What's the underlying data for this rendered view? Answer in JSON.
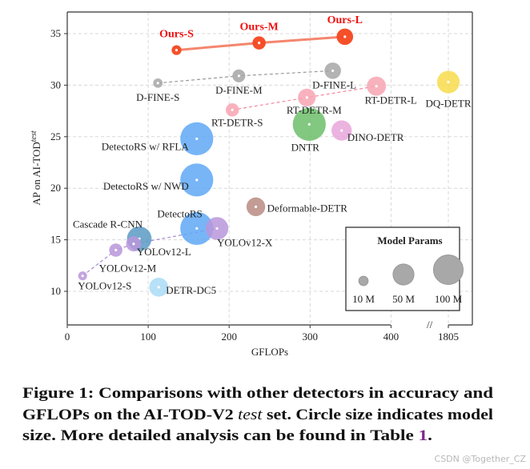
{
  "chart_data": {
    "type": "scatter",
    "subtype": "bubble",
    "xlabel": "GFLOPs",
    "ylabel": "AP on AI-TOD",
    "ylabel_superscript": "test",
    "xticks": [
      "0",
      "100",
      "200",
      "300",
      "400",
      "1805"
    ],
    "yticks": [
      "10",
      "15",
      "20",
      "25",
      "30",
      "35"
    ],
    "x_axis_break": true,
    "ylim": [
      6.9,
      37.1
    ],
    "grid": true,
    "legend": {
      "title": "Model Params",
      "placement": "bottom-right",
      "entries": [
        {
          "label": "10 M",
          "params": 10
        },
        {
          "label": "50 M",
          "params": 50
        },
        {
          "label": "100 M",
          "params": 100
        }
      ]
    },
    "points": [
      {
        "name": "Ours-S",
        "x": 135,
        "y": 33.4,
        "params": 11,
        "color": "#f4471f",
        "highlight": true
      },
      {
        "name": "Ours-M",
        "x": 237,
        "y": 34.1,
        "params": 20,
        "color": "#f4471f",
        "highlight": true
      },
      {
        "name": "Ours-L",
        "x": 343,
        "y": 34.7,
        "params": 31,
        "color": "#f4471f",
        "highlight": true
      },
      {
        "name": "D-FINE-S",
        "x": 112,
        "y": 30.2,
        "params": 10,
        "color": "#a6a6a6"
      },
      {
        "name": "D-FINE-M",
        "x": 212,
        "y": 30.9,
        "params": 19,
        "color": "#a6a6a6"
      },
      {
        "name": "D-FINE-L",
        "x": 328,
        "y": 31.4,
        "params": 31,
        "color": "#a6a6a6"
      },
      {
        "name": "RT-DETR-S",
        "x": 204,
        "y": 27.6,
        "params": 20,
        "color": "#f7a4b3"
      },
      {
        "name": "RT-DETR-M",
        "x": 296,
        "y": 28.8,
        "params": 36,
        "color": "#f7a4b3"
      },
      {
        "name": "RT-DETR-L",
        "x": 382,
        "y": 29.9,
        "params": 42,
        "color": "#f7a4b3"
      },
      {
        "name": "DQ-DETR",
        "x": 1805,
        "y": 30.3,
        "params": 58,
        "color": "#f8dc4c"
      },
      {
        "name": "DNTR",
        "x": 299,
        "y": 26.2,
        "params": 124,
        "color": "#6cbe6a"
      },
      {
        "name": "DINO-DETR",
        "x": 339,
        "y": 25.6,
        "params": 47,
        "color": "#e8a6da"
      },
      {
        "name": "DetectoRS w/ RFLA",
        "x": 160,
        "y": 24.8,
        "params": 124,
        "color": "#5fa8f6"
      },
      {
        "name": "DetectoRS w/ NWD",
        "x": 160,
        "y": 20.8,
        "params": 124,
        "color": "#5fa8f6"
      },
      {
        "name": "Deformable-DETR",
        "x": 233,
        "y": 18.2,
        "params": 40,
        "color": "#b98b83"
      },
      {
        "name": "DetectoRS",
        "x": 160,
        "y": 16.1,
        "params": 124,
        "color": "#5fa8f6"
      },
      {
        "name": "YOLOv12-X",
        "x": 185,
        "y": 16.1,
        "params": 59,
        "color": "#b996da"
      },
      {
        "name": "Cascade R-CNN",
        "x": 89,
        "y": 15.1,
        "params": 69,
        "color": "#5a9ac4"
      },
      {
        "name": "YOLOv12-L",
        "x": 82,
        "y": 14.6,
        "params": 26,
        "color": "#b996da"
      },
      {
        "name": "YOLOv12-M",
        "x": 60,
        "y": 14.0,
        "params": 20,
        "color": "#b996da"
      },
      {
        "name": "YOLOv12-S",
        "x": 19,
        "y": 11.5,
        "params": 9,
        "color": "#b996da"
      },
      {
        "name": "DETR-DC5",
        "x": 113,
        "y": 10.4,
        "params": 41,
        "color": "#a9dcf6"
      }
    ],
    "series_lines": [
      {
        "members": [
          "Ours-S",
          "Ours-M",
          "Ours-L"
        ],
        "style": "solid",
        "color": "#f4866e"
      },
      {
        "members": [
          "D-FINE-S",
          "D-FINE-M",
          "D-FINE-L"
        ],
        "style": "dashed",
        "color": "#9a9a9a"
      },
      {
        "members": [
          "RT-DETR-S",
          "RT-DETR-M",
          "RT-DETR-L"
        ],
        "style": "dashed",
        "color": "#f48aa0"
      },
      {
        "members": [
          "YOLOv12-S",
          "YOLOv12-M",
          "YOLOv12-L",
          "YOLOv12-X"
        ],
        "style": "dashed",
        "color": "#a98bd0"
      }
    ]
  },
  "caption": {
    "line1": "Figure 1: Comparisons with other detectors in accuracy and",
    "line2_a": "GFLOPs on the AI-TOD-V2 ",
    "line2_italic": "test",
    "line2_b": " set. Circle size indicates model",
    "line3_a": "size. More detailed analysis can be found in Table ",
    "line3_ref": "1",
    "line3_b": ".",
    "ref_color": "#7b2a8c"
  },
  "watermark": "CSDN @Together_CZ"
}
